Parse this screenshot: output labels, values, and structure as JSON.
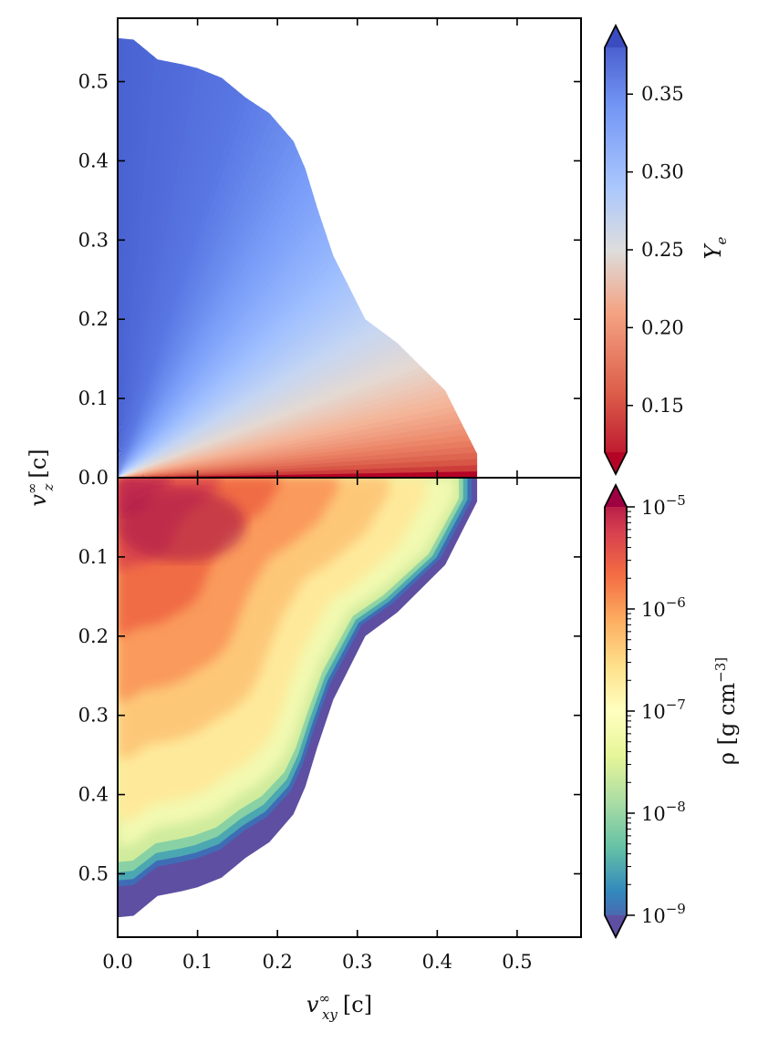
{
  "chart_data": [
    {
      "type": "heatmap",
      "panel": "top",
      "quantity_label": "Y_e",
      "xlim": [
        0.0,
        0.58
      ],
      "ylim": [
        0.0,
        0.58
      ],
      "x_ticks": [
        0.0,
        0.1,
        0.2,
        0.3,
        0.4,
        0.5
      ],
      "y_ticks": [
        0.0,
        0.1,
        0.2,
        0.3,
        0.4,
        0.5
      ],
      "y_tick_labels": [
        "0.0",
        "0.1",
        "0.2",
        "0.3",
        "0.4",
        "0.5"
      ],
      "outline": [
        [
          0.0,
          0.555
        ],
        [
          0.02,
          0.553
        ],
        [
          0.05,
          0.528
        ],
        [
          0.08,
          0.522
        ],
        [
          0.1,
          0.517
        ],
        [
          0.13,
          0.505
        ],
        [
          0.16,
          0.48
        ],
        [
          0.19,
          0.46
        ],
        [
          0.22,
          0.425
        ],
        [
          0.235,
          0.39
        ],
        [
          0.25,
          0.34
        ],
        [
          0.27,
          0.28
        ],
        [
          0.29,
          0.24
        ],
        [
          0.31,
          0.2
        ],
        [
          0.35,
          0.17
        ],
        [
          0.38,
          0.14
        ],
        [
          0.41,
          0.11
        ],
        [
          0.43,
          0.07
        ],
        [
          0.45,
          0.03
        ],
        [
          0.45,
          0.0
        ]
      ],
      "colormap": "coolwarm_r",
      "colorbar": {
        "label": "Y_e",
        "range": [
          0.12,
          0.38
        ],
        "ticks": [
          0.15,
          0.2,
          0.25,
          0.3,
          0.35
        ],
        "tick_labels": [
          "0.15",
          "0.20",
          "0.25",
          "0.30",
          "0.35"
        ],
        "extend": "both"
      }
    },
    {
      "type": "heatmap",
      "panel": "bottom",
      "quantity_label": "ρ [g cm^-3]",
      "xlim": [
        0.0,
        0.58
      ],
      "ylim": [
        0.0,
        0.58
      ],
      "y_inverted": true,
      "x_ticks": [
        0.0,
        0.1,
        0.2,
        0.3,
        0.4,
        0.5
      ],
      "x_tick_labels": [
        "0.0",
        "0.1",
        "0.2",
        "0.3",
        "0.4",
        "0.5"
      ],
      "y_ticks": [
        0.1,
        0.2,
        0.3,
        0.4,
        0.5
      ],
      "y_tick_labels": [
        "0.1",
        "0.2",
        "0.3",
        "0.4",
        "0.5"
      ],
      "outline": [
        [
          0.0,
          0.555
        ],
        [
          0.02,
          0.553
        ],
        [
          0.05,
          0.528
        ],
        [
          0.08,
          0.522
        ],
        [
          0.1,
          0.517
        ],
        [
          0.13,
          0.505
        ],
        [
          0.16,
          0.48
        ],
        [
          0.19,
          0.46
        ],
        [
          0.22,
          0.425
        ],
        [
          0.235,
          0.39
        ],
        [
          0.25,
          0.34
        ],
        [
          0.27,
          0.28
        ],
        [
          0.29,
          0.24
        ],
        [
          0.31,
          0.2
        ],
        [
          0.35,
          0.17
        ],
        [
          0.38,
          0.14
        ],
        [
          0.41,
          0.11
        ],
        [
          0.43,
          0.07
        ],
        [
          0.45,
          0.03
        ],
        [
          0.45,
          0.0
        ]
      ],
      "colormap": "Spectral_r",
      "scale": "log",
      "colorbar": {
        "label": "ρ [g cm^-3]",
        "range_log10": [
          -9,
          -5
        ],
        "ticks_log10": [
          -9,
          -8,
          -7,
          -6,
          -5
        ],
        "tick_labels": [
          "10^-9",
          "10^-8",
          "10^-7",
          "10^-6",
          "10^-5"
        ],
        "extend": "both"
      }
    }
  ],
  "axes": {
    "x_label": "v_xy^∞ [c]",
    "y_label": "v_z^∞ [c]"
  },
  "colors": {
    "ye_low": "#b40426",
    "ye_mid": "#dddddd",
    "ye_high": "#3b4cc0",
    "rho_low": "#5e4fa2",
    "rho_mid": "#ffffbf",
    "rho_high": "#9e0142"
  }
}
